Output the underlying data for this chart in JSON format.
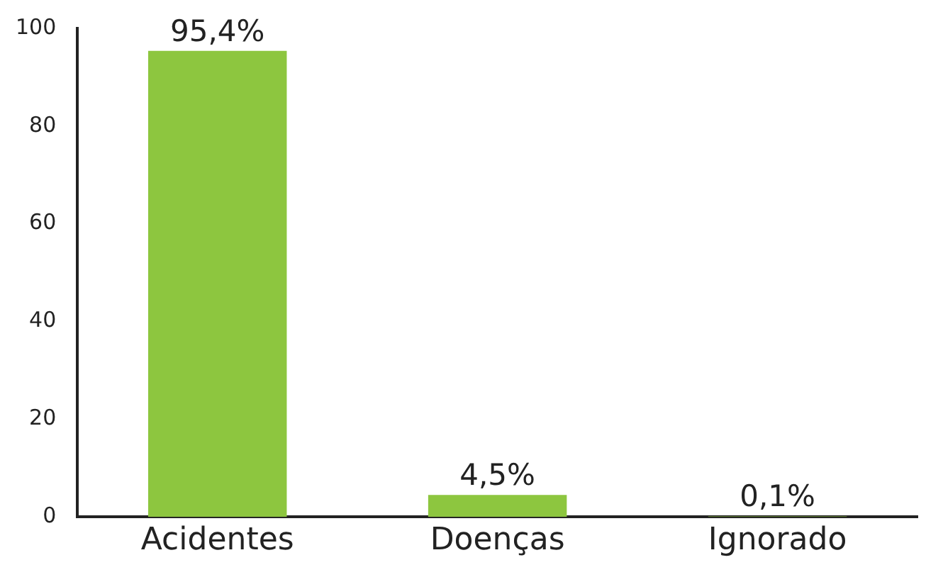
{
  "chart_data": {
    "type": "bar",
    "categories": [
      "Acidentes",
      "Doenças",
      "Ignorado"
    ],
    "values": [
      95.4,
      4.5,
      0.1
    ],
    "color": "#8dc63f",
    "value_labels": [
      "95,4%",
      "4,5%",
      "0,1%"
    ],
    "ylim": [
      0,
      100
    ],
    "yticks": [
      0,
      20,
      40,
      60,
      80,
      100
    ],
    "grid": false,
    "legend": false
  }
}
